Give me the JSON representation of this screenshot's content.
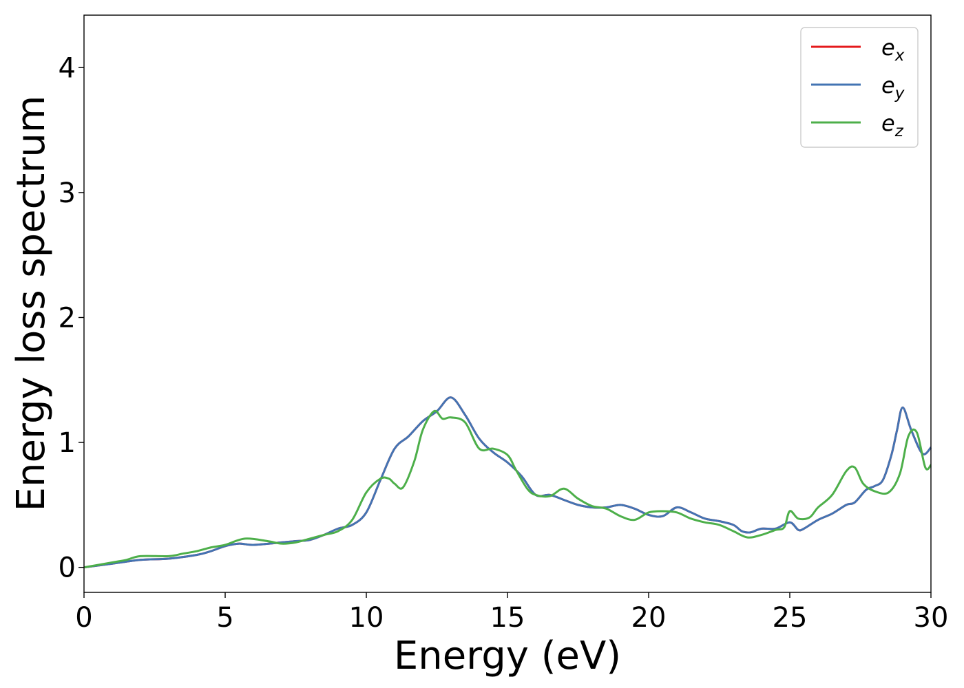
{
  "chart_data": {
    "type": "line",
    "title": "",
    "xlabel": "Energy (eV)",
    "ylabel": "Energy loss spectrum",
    "xlim": [
      0,
      30
    ],
    "ylim": [
      -0.2,
      4.42
    ],
    "xticks": [
      0,
      5,
      10,
      15,
      20,
      25,
      30
    ],
    "xtick_labels": [
      "0",
      "5",
      "10",
      "15",
      "20",
      "25",
      "30"
    ],
    "yticks": [
      0,
      1,
      2,
      3,
      4
    ],
    "ytick_labels": [
      "0",
      "1",
      "2",
      "3",
      "4"
    ],
    "grid": false,
    "legend_position": "top-right",
    "series": [
      {
        "name": "e_x",
        "legend_base": "e",
        "legend_sub": "x",
        "color": "#e41a1c",
        "x": [
          0,
          1,
          2,
          3,
          4,
          4.5,
          5,
          5.5,
          6,
          7,
          7.5,
          8,
          8.5,
          9,
          9.5,
          10,
          10.5,
          11,
          11.5,
          12,
          12.5,
          13,
          13.5,
          14,
          14.5,
          15,
          15.5,
          16,
          16.5,
          17,
          17.5,
          18,
          18.5,
          19,
          19.5,
          20,
          20.5,
          21,
          21.5,
          22,
          22.5,
          23,
          23.3,
          23.6,
          24,
          24.5,
          25,
          25.3,
          25.5,
          26,
          26.5,
          27,
          27.3,
          27.7,
          28,
          28.3,
          28.6,
          28.8,
          29,
          29.3,
          29.7,
          30
        ],
        "y": [
          0.0,
          0.03,
          0.06,
          0.07,
          0.1,
          0.13,
          0.17,
          0.19,
          0.18,
          0.2,
          0.21,
          0.22,
          0.26,
          0.31,
          0.34,
          0.44,
          0.7,
          0.95,
          1.05,
          1.17,
          1.25,
          1.36,
          1.22,
          1.03,
          0.92,
          0.84,
          0.73,
          0.58,
          0.58,
          0.54,
          0.5,
          0.48,
          0.48,
          0.5,
          0.47,
          0.42,
          0.41,
          0.48,
          0.44,
          0.39,
          0.37,
          0.34,
          0.29,
          0.28,
          0.31,
          0.31,
          0.36,
          0.3,
          0.31,
          0.38,
          0.43,
          0.5,
          0.52,
          0.62,
          0.65,
          0.7,
          0.9,
          1.1,
          1.28,
          1.1,
          0.91,
          0.96
        ]
      },
      {
        "name": "e_y",
        "legend_base": "e",
        "legend_sub": "y",
        "color": "#4374b3",
        "x": [
          0,
          1,
          2,
          3,
          4,
          4.5,
          5,
          5.5,
          6,
          7,
          7.5,
          8,
          8.5,
          9,
          9.5,
          10,
          10.5,
          11,
          11.5,
          12,
          12.5,
          13,
          13.5,
          14,
          14.5,
          15,
          15.5,
          16,
          16.5,
          17,
          17.5,
          18,
          18.5,
          19,
          19.5,
          20,
          20.5,
          21,
          21.5,
          22,
          22.5,
          23,
          23.3,
          23.6,
          24,
          24.5,
          25,
          25.3,
          25.5,
          26,
          26.5,
          27,
          27.3,
          27.7,
          28,
          28.3,
          28.6,
          28.8,
          29,
          29.3,
          29.7,
          30
        ],
        "y": [
          0.0,
          0.03,
          0.06,
          0.07,
          0.1,
          0.13,
          0.17,
          0.19,
          0.18,
          0.2,
          0.21,
          0.22,
          0.26,
          0.31,
          0.34,
          0.44,
          0.7,
          0.95,
          1.05,
          1.17,
          1.25,
          1.36,
          1.22,
          1.03,
          0.92,
          0.84,
          0.73,
          0.58,
          0.58,
          0.54,
          0.5,
          0.48,
          0.48,
          0.5,
          0.47,
          0.42,
          0.41,
          0.48,
          0.44,
          0.39,
          0.37,
          0.34,
          0.29,
          0.28,
          0.31,
          0.31,
          0.36,
          0.3,
          0.31,
          0.38,
          0.43,
          0.5,
          0.52,
          0.62,
          0.65,
          0.7,
          0.9,
          1.1,
          1.28,
          1.1,
          0.91,
          0.96
        ]
      },
      {
        "name": "e_z",
        "legend_base": "e",
        "legend_sub": "z",
        "color": "#4daf4a",
        "x": [
          0,
          1,
          1.5,
          2,
          3,
          3.5,
          4,
          4.5,
          5,
          5.7,
          6.5,
          7,
          7.5,
          8,
          8.5,
          9,
          9.5,
          10,
          10.5,
          10.8,
          11,
          11.3,
          11.7,
          12,
          12.4,
          12.7,
          13,
          13.5,
          14,
          14.5,
          15,
          15.3,
          15.7,
          16,
          16.5,
          17,
          17.5,
          18,
          18.5,
          19,
          19.5,
          20,
          20.5,
          21,
          21.5,
          22,
          22.5,
          23,
          23.5,
          24,
          24.5,
          24.8,
          25,
          25.3,
          25.7,
          26,
          26.5,
          27,
          27.3,
          27.6,
          28,
          28.5,
          28.9,
          29.2,
          29.5,
          29.8,
          30
        ],
        "y": [
          0.0,
          0.04,
          0.06,
          0.09,
          0.09,
          0.11,
          0.13,
          0.16,
          0.18,
          0.23,
          0.21,
          0.19,
          0.2,
          0.23,
          0.26,
          0.29,
          0.38,
          0.6,
          0.71,
          0.71,
          0.67,
          0.64,
          0.85,
          1.1,
          1.25,
          1.19,
          1.2,
          1.16,
          0.95,
          0.95,
          0.9,
          0.78,
          0.63,
          0.58,
          0.57,
          0.63,
          0.55,
          0.49,
          0.47,
          0.41,
          0.38,
          0.44,
          0.45,
          0.44,
          0.39,
          0.36,
          0.34,
          0.29,
          0.24,
          0.26,
          0.3,
          0.32,
          0.45,
          0.39,
          0.4,
          0.48,
          0.58,
          0.77,
          0.8,
          0.67,
          0.61,
          0.6,
          0.75,
          1.05,
          1.08,
          0.8,
          0.82
        ]
      }
    ]
  }
}
